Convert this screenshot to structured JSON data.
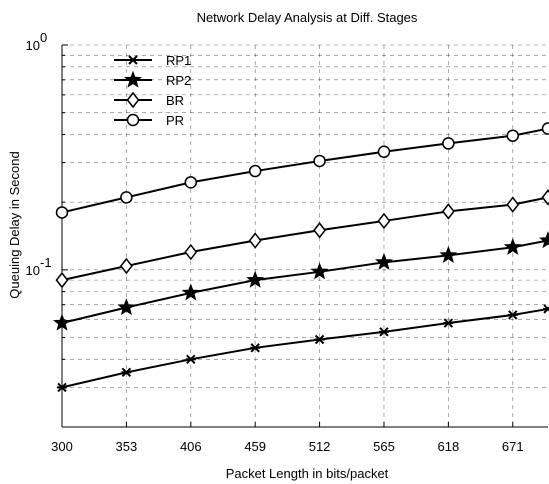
{
  "chart_data": {
    "type": "line",
    "title": "Network Delay Analysis at Diff. Stages",
    "xlabel": "Packet Length in bits/packet",
    "ylabel": "Queuing Delay in Second",
    "yscale": "log",
    "xlim": [
      300,
      700
    ],
    "ylim": [
      0.02,
      1
    ],
    "x_ticks": [
      300,
      353,
      406,
      459,
      512,
      565,
      618,
      671
    ],
    "x_tick_labels": [
      "300",
      "353",
      "406",
      "459",
      "512",
      "565",
      "618",
      "671"
    ],
    "y_tick_labels": [
      {
        "base": "10",
        "exp": "0",
        "value": 1
      },
      {
        "base": "10",
        "exp": "-1",
        "value": 0.1
      }
    ],
    "grid": true,
    "legend_position": "top-left",
    "x": [
      300,
      353,
      406,
      459,
      512,
      565,
      618,
      671,
      700
    ],
    "series": [
      {
        "name": "RP1",
        "marker": "x-cross",
        "values": [
          0.03,
          0.035,
          0.04,
          0.045,
          0.049,
          0.053,
          0.058,
          0.063,
          0.067
        ]
      },
      {
        "name": "RP2",
        "marker": "star",
        "values": [
          0.058,
          0.068,
          0.079,
          0.09,
          0.098,
          0.108,
          0.116,
          0.126,
          0.135
        ]
      },
      {
        "name": "BR",
        "marker": "diamond",
        "values": [
          0.09,
          0.104,
          0.12,
          0.135,
          0.15,
          0.165,
          0.182,
          0.195,
          0.21
        ]
      },
      {
        "name": "PR",
        "marker": "circle",
        "values": [
          0.18,
          0.21,
          0.245,
          0.275,
          0.305,
          0.335,
          0.365,
          0.395,
          0.425
        ]
      }
    ]
  }
}
